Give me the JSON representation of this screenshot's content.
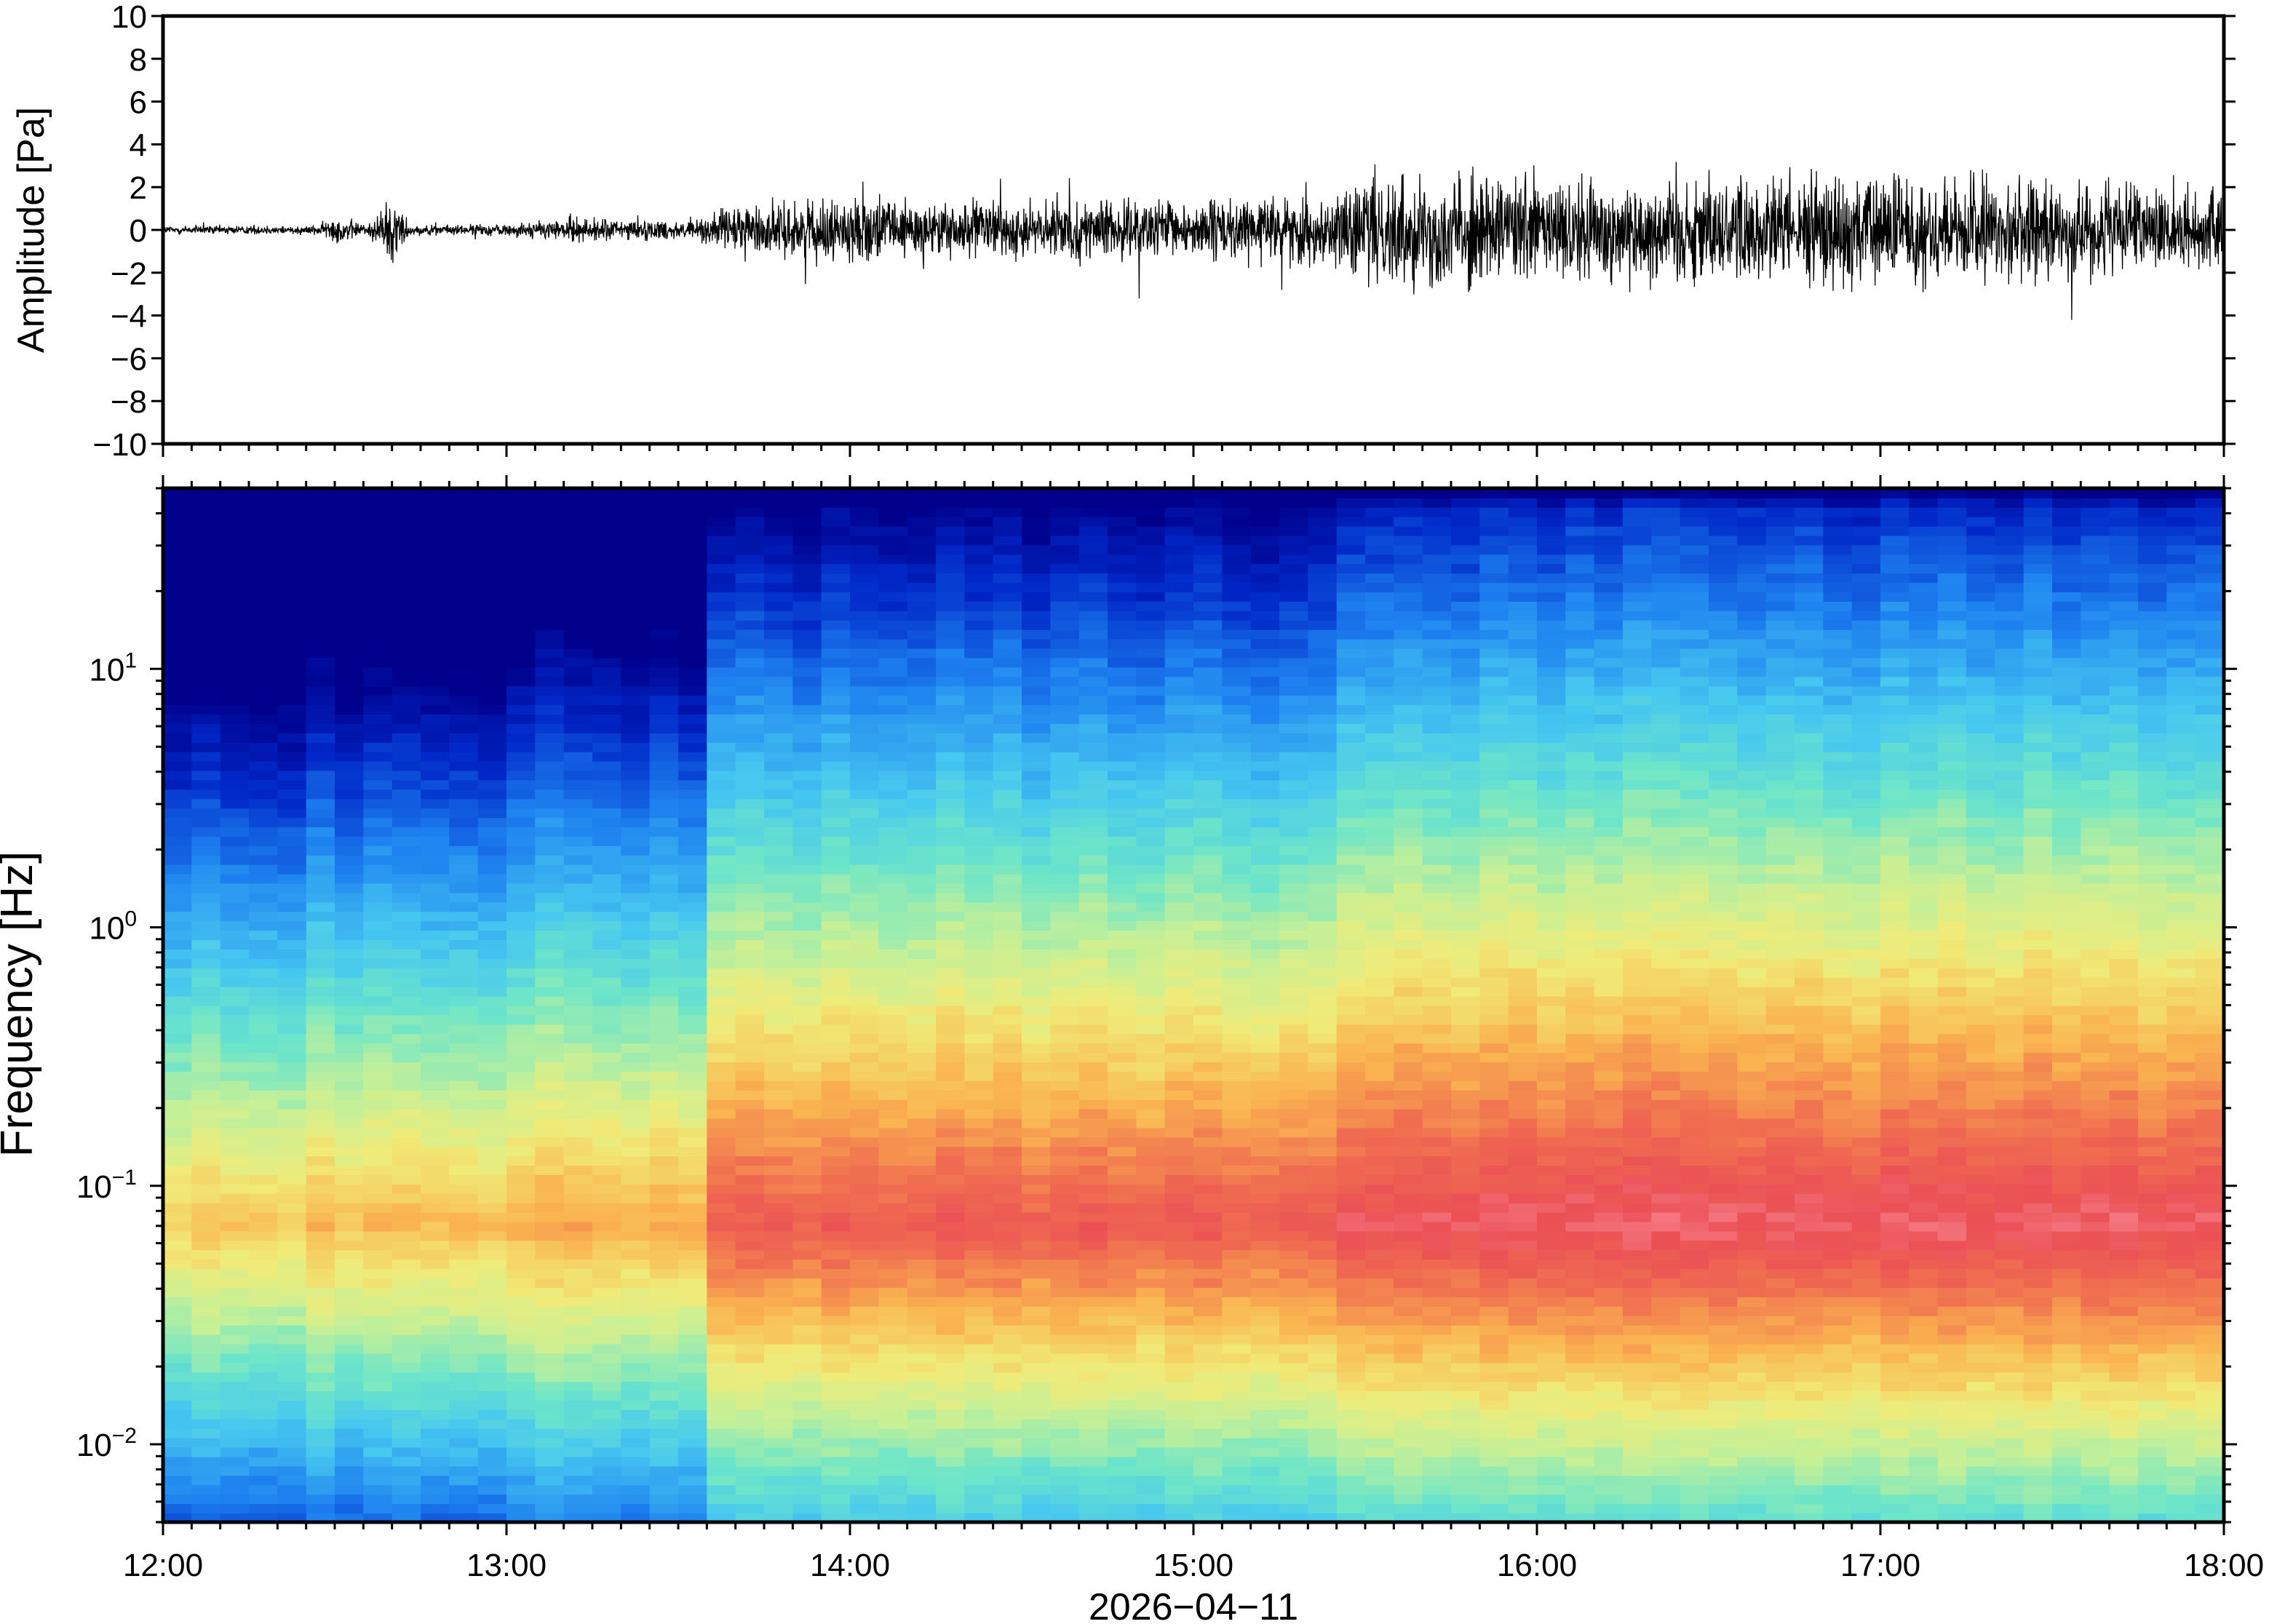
{
  "chart_data": [
    {
      "type": "line",
      "panel": "waveform",
      "ylabel": "Amplitude [Pa]",
      "ylim": [
        -10,
        10
      ],
      "yticks": [
        10,
        8,
        6,
        4,
        2,
        0,
        -2,
        -4,
        -6,
        -8,
        -10
      ],
      "ytick_labels": [
        "10",
        "8",
        "6",
        "4",
        "2",
        "0",
        "−2",
        "−4",
        "−6",
        "−8",
        "−10"
      ],
      "xlim": [
        "12:00",
        "18:00"
      ],
      "envelope": [
        {
          "t": 12.0,
          "amp": 0.3
        },
        {
          "t": 12.45,
          "amp": 0.3
        },
        {
          "t": 12.5,
          "amp": 0.9
        },
        {
          "t": 12.6,
          "amp": 0.4
        },
        {
          "t": 12.67,
          "amp": 2.5
        },
        {
          "t": 12.72,
          "amp": 0.3
        },
        {
          "t": 13.0,
          "amp": 0.4
        },
        {
          "t": 13.2,
          "amp": 0.8
        },
        {
          "t": 13.55,
          "amp": 0.6
        },
        {
          "t": 13.65,
          "amp": 1.6
        },
        {
          "t": 14.0,
          "amp": 2.0
        },
        {
          "t": 14.5,
          "amp": 1.8
        },
        {
          "t": 15.0,
          "amp": 1.9
        },
        {
          "t": 15.4,
          "amp": 2.2
        },
        {
          "t": 15.55,
          "amp": 3.8
        },
        {
          "t": 16.0,
          "amp": 3.5
        },
        {
          "t": 16.5,
          "amp": 3.6
        },
        {
          "t": 17.0,
          "amp": 3.7
        },
        {
          "t": 17.5,
          "amp": 3.2
        },
        {
          "t": 18.0,
          "amp": 2.4
        }
      ]
    },
    {
      "type": "heatmap",
      "panel": "spectrogram",
      "ylabel": "Frequency [Hz]",
      "xlabel": "2026−04−11",
      "yscale": "log",
      "ylim": [
        0.005,
        50
      ],
      "yticks": [
        10,
        1,
        0.1,
        0.01
      ],
      "ytick_bases": [
        "10",
        "10",
        "10",
        "10"
      ],
      "ytick_exponents": [
        "1",
        "0",
        "−1",
        "−2"
      ],
      "xticks": [
        "12:00",
        "13:00",
        "14:00",
        "15:00",
        "16:00",
        "17:00",
        "18:00"
      ],
      "colormap": "spectral"
    }
  ],
  "colors": {
    "frame": "#000000",
    "trace": "#000000",
    "colormap_low": "#00008b",
    "colormap_high": "#ff9fae"
  }
}
